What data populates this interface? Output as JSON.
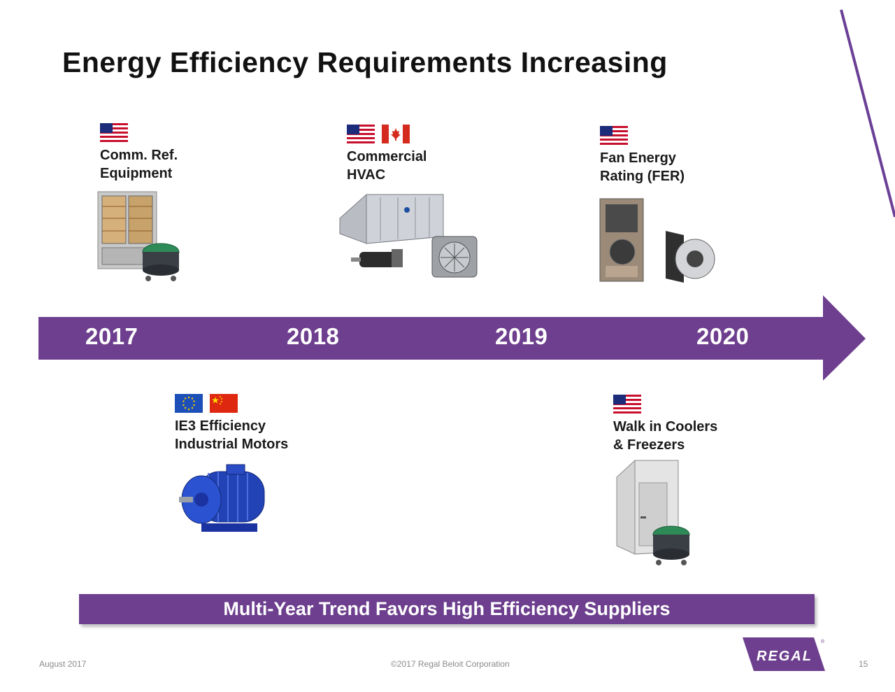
{
  "slide": {
    "title": "Energy Efficiency Requirements Increasing"
  },
  "colors": {
    "brand_purple": "#6d3f8e",
    "line_purple": "#6a3f96",
    "text": "#1a1a1a"
  },
  "timeline": {
    "years": [
      "2017",
      "2018",
      "2019",
      "2020"
    ]
  },
  "items": [
    {
      "label": "Comm. Ref.\nEquipment",
      "flags": [
        "us-flag-icon"
      ]
    },
    {
      "label": "Commercial\nHVAC",
      "flags": [
        "us-flag-icon",
        "canada-flag-icon"
      ]
    },
    {
      "label": "Fan Energy\nRating (FER)",
      "flags": [
        "us-flag-icon"
      ]
    },
    {
      "label": "IE3 Efficiency\nIndustrial Motors",
      "flags": [
        "eu-flag-icon",
        "china-flag-icon"
      ]
    },
    {
      "label": "Walk in Coolers\n& Freezers",
      "flags": [
        "us-flag-icon"
      ]
    }
  ],
  "banner": {
    "text": "Multi-Year Trend Favors High Efficiency Suppliers"
  },
  "footer": {
    "date": "August 2017",
    "copyright": "©2017 Regal Beloit Corporation",
    "page_number": "15",
    "logo_text": "REGAL"
  }
}
